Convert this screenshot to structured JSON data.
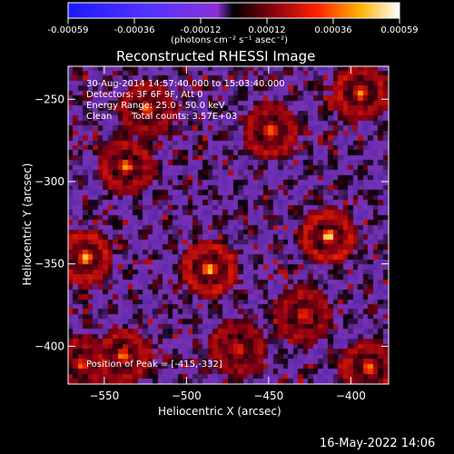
{
  "colorbar": {
    "ticks": [
      "-0.00059",
      "-0.00036",
      "-0.00012",
      "0.00012",
      "0.00036",
      "0.00059"
    ],
    "unit_label": "(photons cm⁻² s⁻¹ asec⁻²)"
  },
  "chart_data": {
    "type": "heatmap",
    "title": "Reconstructed RHESSI Image",
    "xlabel": "Heliocentric X (arcsec)",
    "ylabel": "Heliocentric Y (arcsec)",
    "xlim": [
      -572,
      -377
    ],
    "ylim": [
      -423,
      -230
    ],
    "x_ticks": [
      -550,
      -500,
      -450,
      -400
    ],
    "y_ticks": [
      -250,
      -300,
      -350,
      -400
    ],
    "zlim": [
      -0.00059,
      0.00059
    ],
    "annotations": [
      "30-Aug-2014 14:57:40.000 to 15:03:40.000",
      "Detectors: 3F 6F 9F, Att 0",
      "Energy Range: 25.0 - 50.0 keV",
      "Clean",
      "Total counts: 3.57E+03",
      "Position of Peak = [-415,-332]"
    ],
    "bright_sources": [
      {
        "x": -415,
        "y": -332,
        "level": 1.0
      },
      {
        "x": -487,
        "y": -352,
        "level": 0.9
      },
      {
        "x": -563,
        "y": -345,
        "level": 0.9
      },
      {
        "x": -538,
        "y": -290,
        "level": 0.75
      },
      {
        "x": -395,
        "y": -245,
        "level": 0.8
      },
      {
        "x": -390,
        "y": -412,
        "level": 0.75
      },
      {
        "x": -525,
        "y": -255,
        "level": 0.65
      },
      {
        "x": -450,
        "y": -268,
        "level": 0.7
      },
      {
        "x": -540,
        "y": -405,
        "level": 0.7
      },
      {
        "x": -565,
        "y": -410,
        "level": 0.65
      },
      {
        "x": -430,
        "y": -380,
        "level": 0.6
      },
      {
        "x": -470,
        "y": -400,
        "level": 0.55
      }
    ]
  },
  "timestamp": "16-May-2022 14:06"
}
